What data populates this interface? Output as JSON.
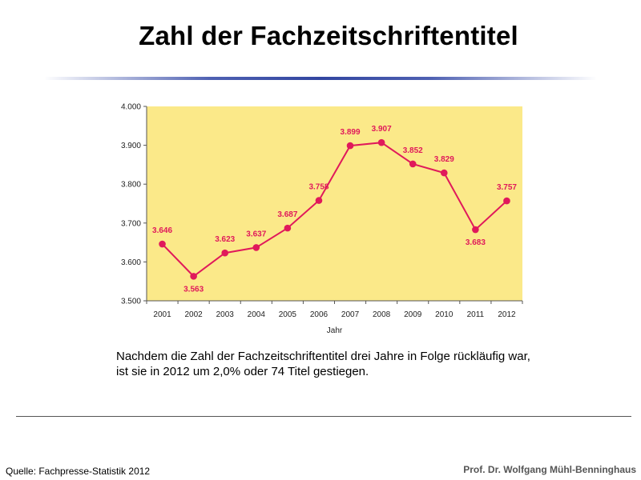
{
  "slide": {
    "title": "Zahl der Fachzeitschriftentitel",
    "caption_line1": "Nachdem die Zahl der Fachzeitschriftentitel drei Jahre in Folge rückläufig war,",
    "caption_line2": "ist sie in 2012 um 2,0% oder 74 Titel gestiegen.",
    "source": "Quelle: Fachpresse-Statistik 2012",
    "author": "Prof. Dr. Wolfgang Mühl-Benninghaus"
  },
  "colors": {
    "plot_background": "#fbe989",
    "series_line": "#e0195b",
    "data_label": "#e0195b"
  },
  "chart_data": {
    "type": "line",
    "title": "",
    "xlabel": "Jahr",
    "ylabel": "",
    "categories": [
      "2001",
      "2002",
      "2003",
      "2004",
      "2005",
      "2006",
      "2007",
      "2008",
      "2009",
      "2010",
      "2011",
      "2012"
    ],
    "values": [
      3646,
      3563,
      3623,
      3637,
      3687,
      3758,
      3899,
      3907,
      3852,
      3829,
      3683,
      3757
    ],
    "value_labels": [
      "3.646",
      "3.563",
      "3.623",
      "3.637",
      "3.687",
      "3.758",
      "3.899",
      "3.907",
      "3.852",
      "3.829",
      "3.683",
      "3.757"
    ],
    "ylim": [
      3500,
      4000
    ],
    "yticks": [
      3500,
      3600,
      3700,
      3800,
      3900,
      4000
    ],
    "ytick_labels": [
      "3.500",
      "3.600",
      "3.700",
      "3.800",
      "3.900",
      "4.000"
    ],
    "grid": false,
    "legend": "none"
  }
}
